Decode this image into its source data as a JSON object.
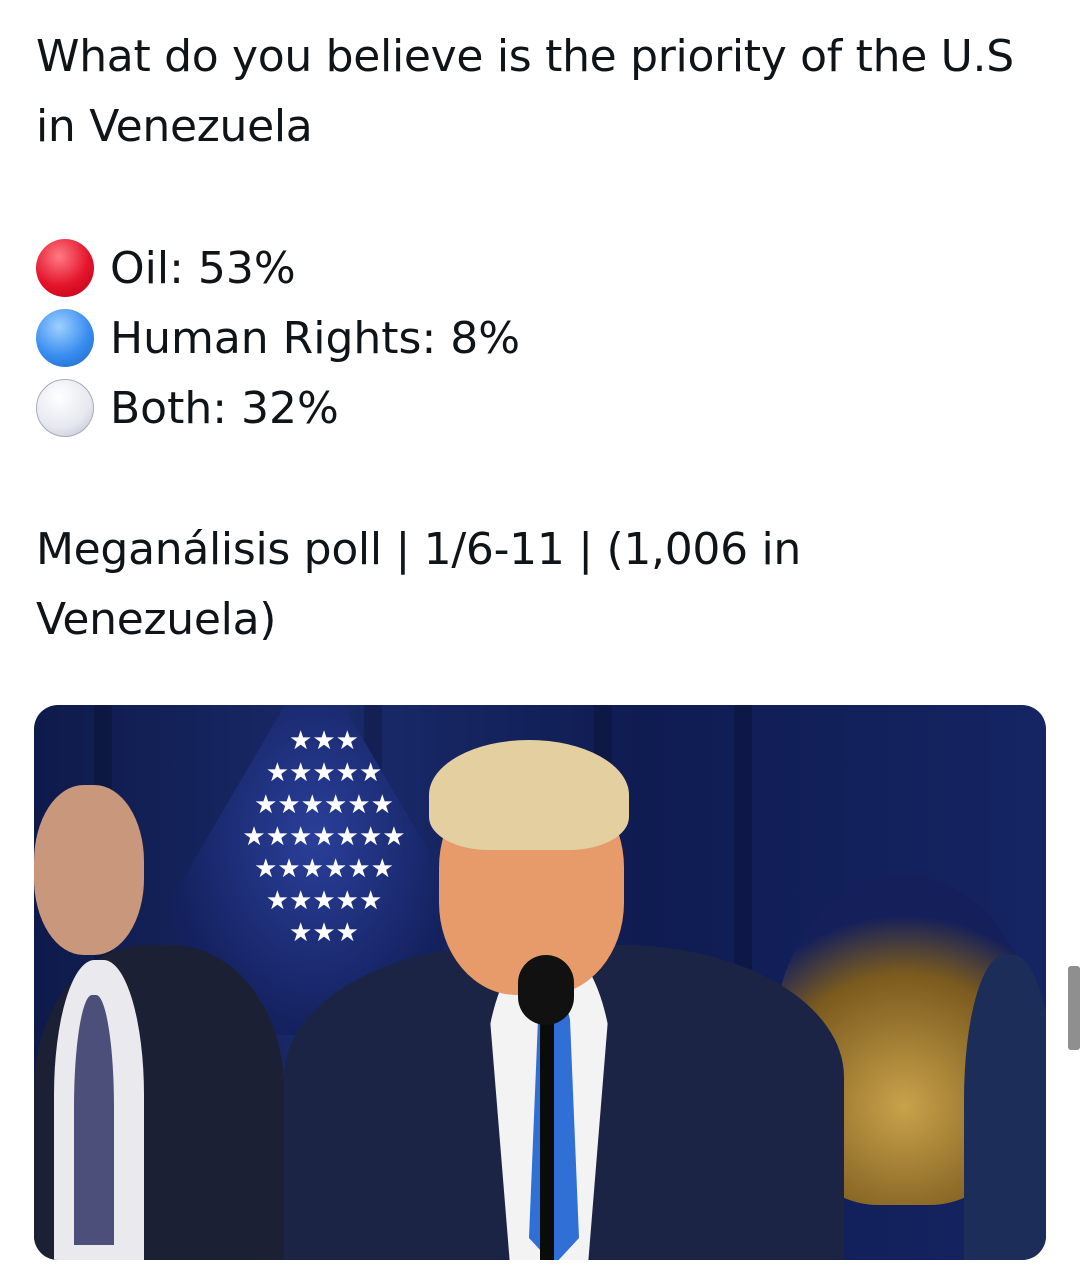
{
  "post": {
    "title": "What do you believe is the priority of the U.S in Venezuela",
    "options": [
      {
        "label": "Oil: 53%",
        "icon": "red-circle-emoji",
        "color": "#e4142b"
      },
      {
        "label": "Human Rights: 8%",
        "icon": "blue-circle-emoji",
        "color": "#3a8ef0"
      },
      {
        "label": "Both: 32%",
        "icon": "white-circle-emoji",
        "color": "#e6e8ef"
      }
    ],
    "source": "Meganálisis poll | 1/6-11 | (1,006 in Venezuela)"
  }
}
